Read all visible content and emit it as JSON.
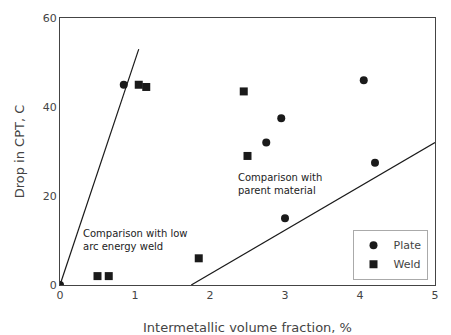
{
  "chart_data": {
    "type": "scatter",
    "xlabel": "Intermetallic volume fraction, %",
    "ylabel": "Drop in CPT, C",
    "xlim": [
      0,
      5
    ],
    "ylim": [
      0,
      60
    ],
    "xticks": [
      0,
      1,
      2,
      3,
      4,
      5
    ],
    "yticks": [
      0,
      20,
      40,
      60
    ],
    "grid": false,
    "legend": "lower right",
    "series": [
      {
        "name": "Plate",
        "type": "scatter",
        "marker": "circle",
        "color": "#1a1a1a",
        "x": [
          0.0,
          0.85,
          2.75,
          2.95,
          3.0,
          4.05,
          4.2
        ],
        "values": [
          0.0,
          45.0,
          32.0,
          37.5,
          15.0,
          46.0,
          27.5
        ]
      },
      {
        "name": "Weld",
        "type": "scatter",
        "marker": "square",
        "color": "#1a1a1a",
        "x": [
          0.5,
          0.65,
          1.05,
          1.15,
          1.85,
          2.45,
          2.5
        ],
        "values": [
          2.0,
          2.0,
          45.0,
          44.5,
          6.0,
          43.5,
          29.0
        ]
      },
      {
        "type": "line",
        "line_style": "solid",
        "color": "#1a1a1a",
        "x": [
          0.0,
          1.05
        ],
        "values": [
          0.0,
          53.0
        ]
      },
      {
        "type": "line",
        "line_style": "solid",
        "color": "#1a1a1a",
        "x": [
          1.75,
          5.0
        ],
        "values": [
          0.0,
          32.0
        ]
      }
    ],
    "annotations": [
      {
        "text": "Comparison with low\narc energy weld",
        "x": 0.28,
        "y": 7.0
      },
      {
        "text": "Comparison with\nparent material",
        "x": 2.35,
        "y": 19.5
      }
    ]
  }
}
